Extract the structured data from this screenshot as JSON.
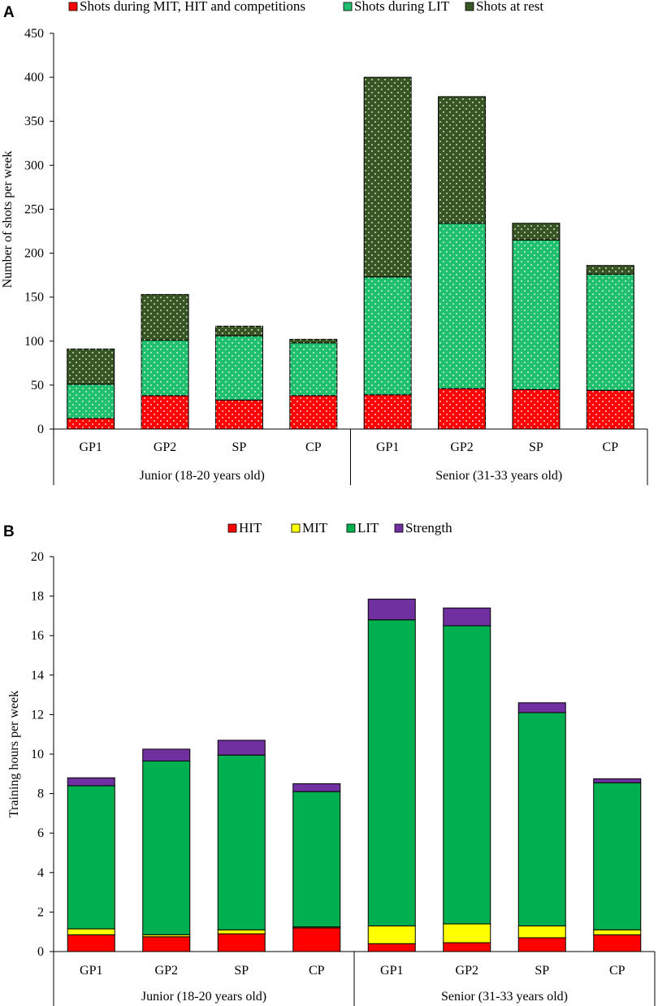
{
  "chart_data": [
    {
      "panel_label": "A",
      "type": "bar",
      "stacked": true,
      "ylabel": "Number of shots per week",
      "ylim": [
        0,
        450
      ],
      "yticks": [
        0,
        50,
        100,
        150,
        200,
        250,
        300,
        350,
        400,
        450
      ],
      "grid": false,
      "legend_position": "top",
      "categories": [
        "GP1",
        "GP2",
        "SP",
        "CP",
        "GP1",
        "GP2",
        "SP",
        "CP"
      ],
      "groups": [
        {
          "label": "Junior (18-20 years old)",
          "span": 4
        },
        {
          "label": "Senior (31-33 years old)",
          "span": 4
        }
      ],
      "series": [
        {
          "name": "Shots during MIT, HIT and competitions",
          "color": "#ff0000",
          "pattern": "dotted",
          "values": [
            12,
            38,
            33,
            38,
            39,
            46,
            45,
            44
          ]
        },
        {
          "name": "Shots during LIT",
          "color": "#1fbf6e",
          "pattern": "dotted",
          "values": [
            39,
            63,
            73,
            60,
            134,
            188,
            170,
            132
          ]
        },
        {
          "name": "Shots at rest",
          "color": "#375623",
          "pattern": "dotted",
          "values": [
            40,
            52,
            11,
            4,
            227,
            144,
            19,
            10
          ]
        }
      ]
    },
    {
      "panel_label": "B",
      "type": "bar",
      "stacked": true,
      "ylabel": "Training hours per week",
      "ylim": [
        0,
        20
      ],
      "yticks": [
        0,
        2,
        4,
        6,
        8,
        10,
        12,
        14,
        16,
        18,
        20
      ],
      "grid": false,
      "legend_position": "top",
      "categories": [
        "GP1",
        "GP2",
        "SP",
        "CP",
        "GP1",
        "GP2",
        "SP",
        "CP"
      ],
      "groups": [
        {
          "label": "Junior (18-20 years old)",
          "span": 4
        },
        {
          "label": "Senior (31-33 years old)",
          "span": 4
        }
      ],
      "series": [
        {
          "name": "HIT",
          "color": "#ff0000",
          "values": [
            0.85,
            0.75,
            0.9,
            1.2,
            0.4,
            0.45,
            0.7,
            0.85
          ]
        },
        {
          "name": "MIT",
          "color": "#ffff00",
          "values": [
            0.3,
            0.1,
            0.2,
            0.05,
            0.9,
            0.95,
            0.6,
            0.25
          ]
        },
        {
          "name": "LIT",
          "color": "#00b050",
          "values": [
            7.25,
            8.8,
            8.85,
            6.85,
            15.5,
            15.1,
            10.8,
            7.45
          ]
        },
        {
          "name": "Strength",
          "color": "#7030a0",
          "values": [
            0.4,
            0.6,
            0.75,
            0.4,
            1.05,
            0.9,
            0.5,
            0.2
          ]
        }
      ]
    }
  ]
}
